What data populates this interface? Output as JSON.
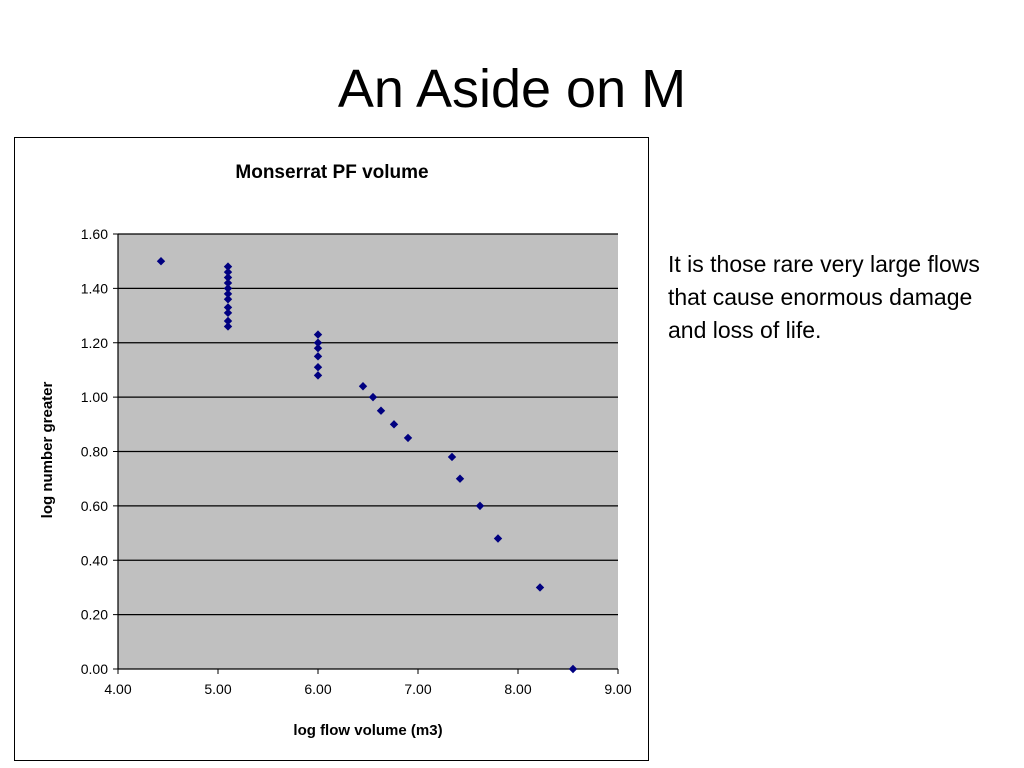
{
  "slide": {
    "title": "An Aside on M",
    "body_text": "It is those rare very large flows that cause enormous damage and loss of life."
  },
  "colors": {
    "plot_background": "#c0c0c0",
    "gridline": "#000000",
    "marker": "#000080"
  },
  "chart_data": {
    "type": "scatter",
    "title": "Monserrat PF volume",
    "xlabel": "log flow volume (m3)",
    "ylabel": "log number greater",
    "xlim": [
      4.0,
      9.0
    ],
    "ylim": [
      0.0,
      1.6
    ],
    "x_ticks": [
      "4.00",
      "5.00",
      "6.00",
      "7.00",
      "8.00",
      "9.00"
    ],
    "y_ticks": [
      "0.00",
      "0.20",
      "0.40",
      "0.60",
      "0.80",
      "1.00",
      "1.20",
      "1.40",
      "1.60"
    ],
    "grid": true,
    "marker": "diamond",
    "points": [
      {
        "x": 4.43,
        "y": 1.5
      },
      {
        "x": 5.1,
        "y": 1.48
      },
      {
        "x": 5.1,
        "y": 1.46
      },
      {
        "x": 5.1,
        "y": 1.44
      },
      {
        "x": 5.1,
        "y": 1.42
      },
      {
        "x": 5.1,
        "y": 1.4
      },
      {
        "x": 5.1,
        "y": 1.38
      },
      {
        "x": 5.1,
        "y": 1.36
      },
      {
        "x": 5.1,
        "y": 1.33
      },
      {
        "x": 5.1,
        "y": 1.31
      },
      {
        "x": 5.1,
        "y": 1.28
      },
      {
        "x": 5.1,
        "y": 1.26
      },
      {
        "x": 6.0,
        "y": 1.23
      },
      {
        "x": 6.0,
        "y": 1.2
      },
      {
        "x": 6.0,
        "y": 1.18
      },
      {
        "x": 6.0,
        "y": 1.15
      },
      {
        "x": 6.0,
        "y": 1.11
      },
      {
        "x": 6.0,
        "y": 1.08
      },
      {
        "x": 6.45,
        "y": 1.04
      },
      {
        "x": 6.55,
        "y": 1.0
      },
      {
        "x": 6.63,
        "y": 0.95
      },
      {
        "x": 6.76,
        "y": 0.9
      },
      {
        "x": 6.9,
        "y": 0.85
      },
      {
        "x": 7.34,
        "y": 0.78
      },
      {
        "x": 7.42,
        "y": 0.7
      },
      {
        "x": 7.62,
        "y": 0.6
      },
      {
        "x": 7.8,
        "y": 0.48
      },
      {
        "x": 8.22,
        "y": 0.3
      },
      {
        "x": 8.55,
        "y": 0.0
      }
    ]
  }
}
